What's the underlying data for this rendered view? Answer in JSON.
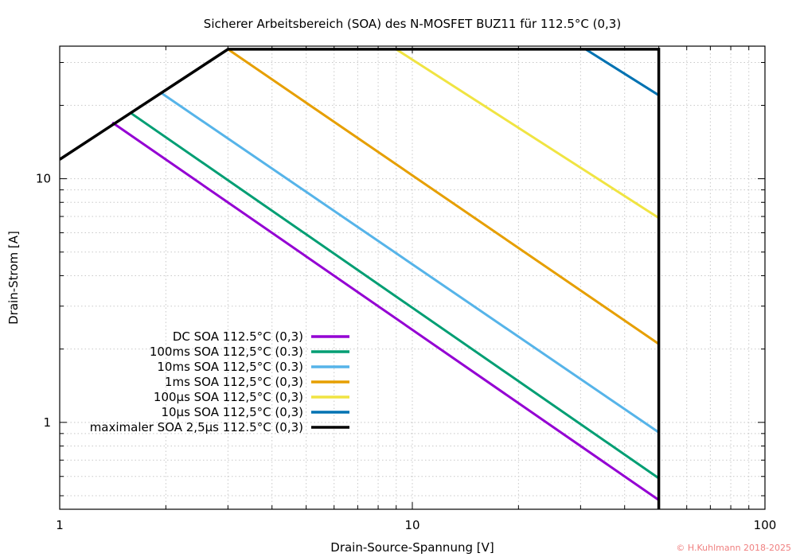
{
  "chart_data": {
    "type": "line",
    "title": "Sicherer Arbeitsbereich (SOA) des N-MOSFET BUZ11 für 112.5°C (0,3)",
    "xlabel": "Drain-Source-Spannung [V]",
    "ylabel": "Drain-Strom [A]",
    "x_scale": "log",
    "y_scale": "log",
    "xlim": [
      1,
      100
    ],
    "ylim": [
      0.44,
      35
    ],
    "grid": true,
    "legend_position": "bottom-left",
    "x_ticks": [
      {
        "value": 1,
        "label": "1"
      },
      {
        "value": 10,
        "label": "10"
      },
      {
        "value": 100,
        "label": "100"
      }
    ],
    "y_ticks": [
      {
        "value": 1,
        "label": "1"
      },
      {
        "value": 10,
        "label": "10"
      }
    ],
    "series": [
      {
        "name": "DC SOA 112.5°C (0,3)",
        "color": "#9400d3",
        "points": [
          [
            1.41,
            17.0
          ],
          [
            50,
            0.48
          ]
        ]
      },
      {
        "name": "100ms SOA 112,5°C (0.3)",
        "color": "#009e73",
        "points": [
          [
            1.6,
            18.5
          ],
          [
            50,
            0.59
          ]
        ]
      },
      {
        "name": "10ms SOA 112,5°C (0.3)",
        "color": "#56b4e9",
        "points": [
          [
            1.94,
            22.5
          ],
          [
            50,
            0.91
          ]
        ]
      },
      {
        "name": "1ms SOA 112,5°C (0,3)",
        "color": "#e69f00",
        "points": [
          [
            3.0,
            34.0
          ],
          [
            50,
            2.1
          ]
        ]
      },
      {
        "name": "100µs SOA 112,5°C (0,3)",
        "color": "#f0e442",
        "points": [
          [
            9.0,
            34.0
          ],
          [
            50,
            6.9
          ]
        ]
      },
      {
        "name": "10µs SOA 112,5°C (0,3)",
        "color": "#0072b2",
        "points": [
          [
            31.0,
            34.0
          ],
          [
            50,
            22.0
          ]
        ]
      },
      {
        "name": "maximaler SOA 2,5µs 112.5°C (0,3)",
        "color": "#000000",
        "points": [
          [
            1.0,
            12.0
          ],
          [
            3.0,
            34.0
          ],
          [
            50,
            34.0
          ],
          [
            50,
            0.44
          ]
        ]
      }
    ]
  },
  "copyright": "© H.Kuhlmann 2018-2025"
}
